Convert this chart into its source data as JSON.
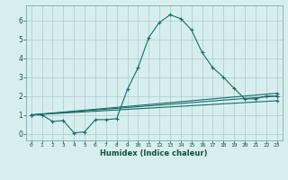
{
  "xlabel": "Humidex (Indice chaleur)",
  "ylabel": "",
  "background_color": "#d6efee",
  "grid_color": "#b2cfcf",
  "line_color": "#1a6b6b",
  "xlim": [
    -0.5,
    23.5
  ],
  "ylim": [
    -0.35,
    6.8
  ],
  "yticks": [
    0,
    1,
    2,
    3,
    4,
    5,
    6
  ],
  "xticks": [
    0,
    1,
    2,
    3,
    4,
    5,
    6,
    7,
    8,
    9,
    10,
    11,
    12,
    13,
    14,
    15,
    16,
    17,
    18,
    19,
    20,
    21,
    22,
    23
  ],
  "series": [
    {
      "x": [
        0,
        1,
        2,
        3,
        4,
        5,
        6,
        7,
        8,
        9,
        10,
        11,
        12,
        13,
        14,
        15,
        16,
        17,
        18,
        19,
        20,
        21,
        22,
        23
      ],
      "y": [
        1.0,
        1.0,
        0.65,
        0.7,
        0.05,
        0.1,
        0.75,
        0.75,
        0.8,
        2.35,
        3.5,
        5.1,
        5.9,
        6.3,
        6.1,
        5.5,
        4.3,
        3.5,
        3.0,
        2.4,
        1.85,
        1.85,
        2.0,
        2.0
      ]
    },
    {
      "x": [
        0,
        23
      ],
      "y": [
        1.0,
        2.0
      ]
    },
    {
      "x": [
        0,
        23
      ],
      "y": [
        1.0,
        1.75
      ]
    },
    {
      "x": [
        0,
        23
      ],
      "y": [
        1.0,
        2.15
      ]
    }
  ]
}
